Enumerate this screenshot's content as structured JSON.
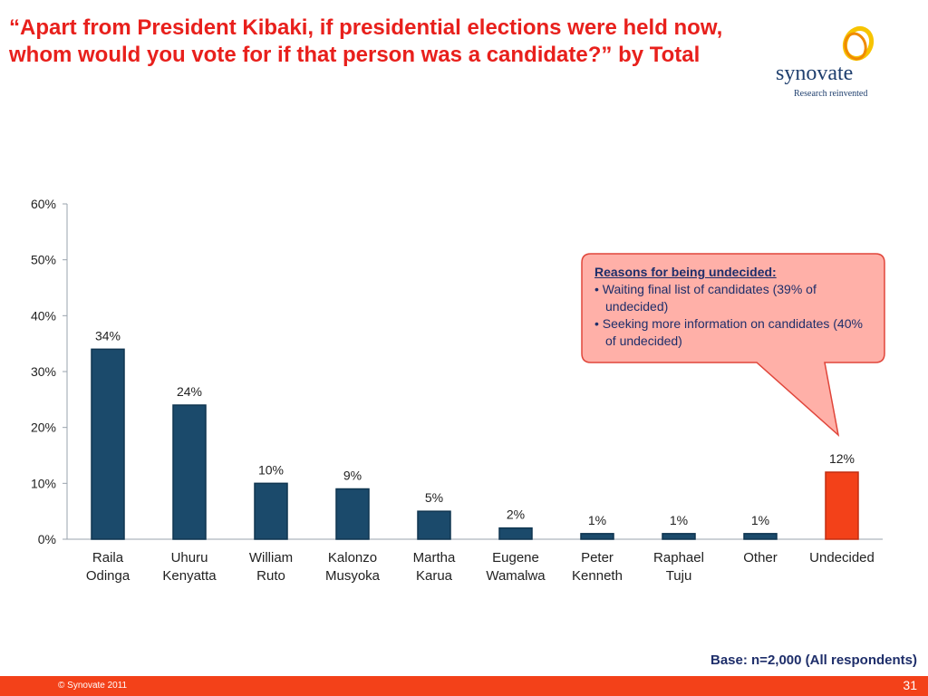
{
  "slide": {
    "title": "“Apart from President Kibaki, if presidential elections were held now, whom would you vote for if that person was a candidate?” by Total",
    "logo_word": "synovate",
    "logo_tagline": "Research reinvented",
    "base_note": "Base: n=2,000 (All respondents)",
    "copyright": "© Synovate 2011",
    "page_number": "31"
  },
  "callout": {
    "heading": "Reasons for being undecided:",
    "bullets": [
      "•  Waiting final list of candidates (39% of undecided)",
      "•  Seeking more information on candidates  (40% of undecided)"
    ]
  },
  "colors": {
    "title": "#e8201c",
    "bar": "#1b4a6b",
    "highlight_bar": "#f34119",
    "footer": "#f34119",
    "callout_fill": "#ffb0a8",
    "callout_border": "#e0453a",
    "text_navy": "#1e2e6a"
  },
  "chart_data": {
    "type": "bar",
    "title": "",
    "xlabel": "",
    "ylabel": "",
    "categories": [
      [
        "Raila",
        "Odinga"
      ],
      [
        "Uhuru",
        "Kenyatta"
      ],
      [
        "William",
        "Ruto"
      ],
      [
        "Kalonzo",
        "Musyoka"
      ],
      [
        "Martha",
        "Karua"
      ],
      [
        "Eugene",
        "Wamalwa"
      ],
      [
        "Peter",
        "Kenneth"
      ],
      [
        "Raphael",
        "Tuju"
      ],
      [
        "Other"
      ],
      [
        "Undecided"
      ]
    ],
    "values": [
      34,
      24,
      10,
      9,
      5,
      2,
      1,
      1,
      1,
      12
    ],
    "data_labels": [
      "34%",
      "24%",
      "10%",
      "9%",
      "5%",
      "2%",
      "1%",
      "1%",
      "1%",
      "12%"
    ],
    "highlight_index": 9,
    "ylim": [
      0,
      60
    ],
    "yticks": [
      0,
      10,
      20,
      30,
      40,
      50,
      60
    ],
    "ytick_labels": [
      "0%",
      "10%",
      "20%",
      "30%",
      "40%",
      "50%",
      "60%"
    ],
    "grid": false,
    "legend": "none"
  }
}
